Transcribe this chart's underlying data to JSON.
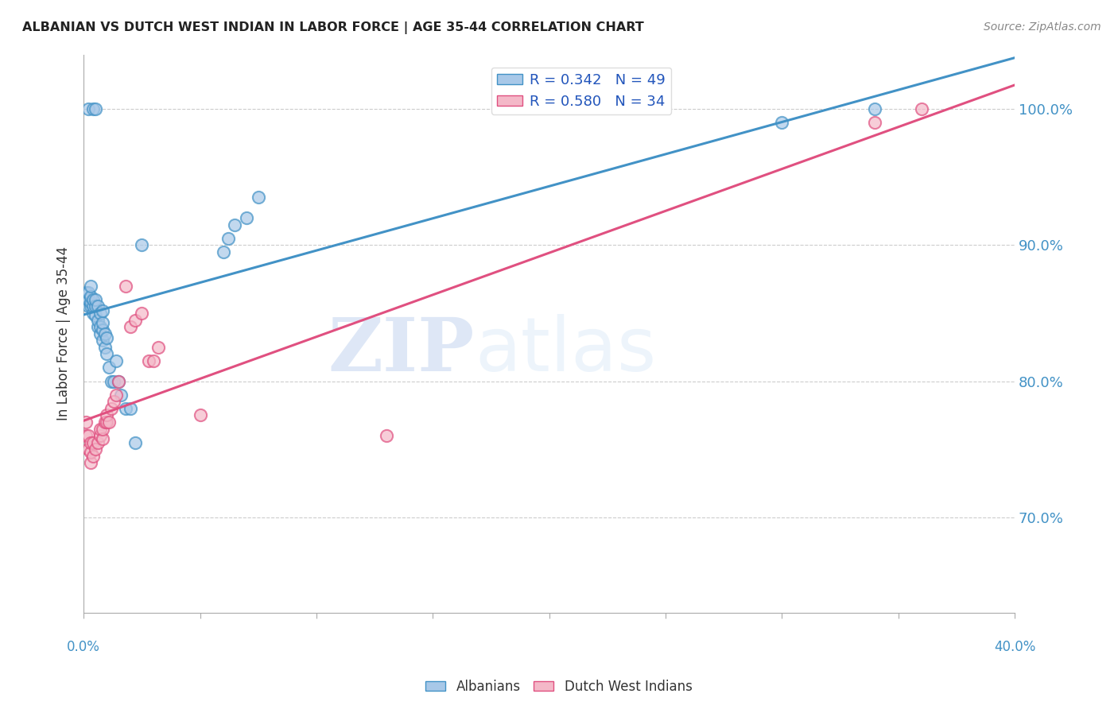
{
  "title": "ALBANIAN VS DUTCH WEST INDIAN IN LABOR FORCE | AGE 35-44 CORRELATION CHART",
  "source": "Source: ZipAtlas.com",
  "ylabel": "In Labor Force | Age 35-44",
  "watermark_zip": "ZIP",
  "watermark_atlas": "atlas",
  "albanian_color": "#a8c8e8",
  "dutch_color": "#f4b8c8",
  "albanian_edge_color": "#4292c6",
  "dutch_edge_color": "#e05080",
  "albanian_line_color": "#4292c6",
  "dutch_line_color": "#e05080",
  "legend_label_albanian": "R = 0.342   N = 49",
  "legend_label_dutch": "R = 0.580   N = 34",
  "albanian_x": [
    0.001,
    0.001,
    0.002,
    0.002,
    0.002,
    0.002,
    0.003,
    0.003,
    0.003,
    0.003,
    0.004,
    0.004,
    0.004,
    0.004,
    0.005,
    0.005,
    0.005,
    0.005,
    0.006,
    0.006,
    0.006,
    0.007,
    0.007,
    0.007,
    0.008,
    0.008,
    0.008,
    0.008,
    0.009,
    0.009,
    0.01,
    0.01,
    0.011,
    0.012,
    0.013,
    0.014,
    0.015,
    0.016,
    0.018,
    0.02,
    0.022,
    0.025,
    0.06,
    0.062,
    0.065,
    0.07,
    0.075,
    0.3,
    0.34
  ],
  "albanian_y": [
    0.86,
    0.865,
    0.855,
    0.86,
    0.865,
    1.0,
    0.855,
    0.858,
    0.862,
    0.87,
    0.85,
    0.855,
    0.86,
    1.0,
    0.848,
    0.855,
    0.86,
    1.0,
    0.84,
    0.845,
    0.855,
    0.835,
    0.84,
    0.85,
    0.83,
    0.838,
    0.843,
    0.852,
    0.825,
    0.835,
    0.82,
    0.832,
    0.81,
    0.8,
    0.8,
    0.815,
    0.8,
    0.79,
    0.78,
    0.78,
    0.755,
    0.9,
    0.895,
    0.905,
    0.915,
    0.92,
    0.935,
    0.99,
    1.0
  ],
  "dutch_x": [
    0.001,
    0.001,
    0.002,
    0.002,
    0.003,
    0.003,
    0.003,
    0.004,
    0.004,
    0.005,
    0.006,
    0.007,
    0.007,
    0.008,
    0.008,
    0.009,
    0.01,
    0.01,
    0.011,
    0.012,
    0.013,
    0.014,
    0.015,
    0.018,
    0.02,
    0.022,
    0.025,
    0.028,
    0.03,
    0.032,
    0.05,
    0.13,
    0.34,
    0.36
  ],
  "dutch_y": [
    0.76,
    0.77,
    0.75,
    0.76,
    0.74,
    0.748,
    0.755,
    0.745,
    0.755,
    0.75,
    0.755,
    0.76,
    0.765,
    0.758,
    0.765,
    0.77,
    0.77,
    0.775,
    0.77,
    0.78,
    0.785,
    0.79,
    0.8,
    0.87,
    0.84,
    0.845,
    0.85,
    0.815,
    0.815,
    0.825,
    0.775,
    0.76,
    0.99,
    1.0
  ],
  "xlim": [
    0.0,
    0.4
  ],
  "ylim": [
    0.63,
    1.04
  ],
  "yticks": [
    0.7,
    0.8,
    0.9,
    1.0
  ],
  "ytick_labels": [
    "70.0%",
    "80.0%",
    "90.0%",
    "100.0%"
  ],
  "xtick_positions": [
    0.0,
    0.05,
    0.1,
    0.15,
    0.2,
    0.25,
    0.3,
    0.35,
    0.4
  ],
  "right_ytick_color": "#4292c6",
  "background_color": "#ffffff",
  "grid_color": "#cccccc",
  "bottom_legend_label_alb": "Albanians",
  "bottom_legend_label_dutch": "Dutch West Indians"
}
